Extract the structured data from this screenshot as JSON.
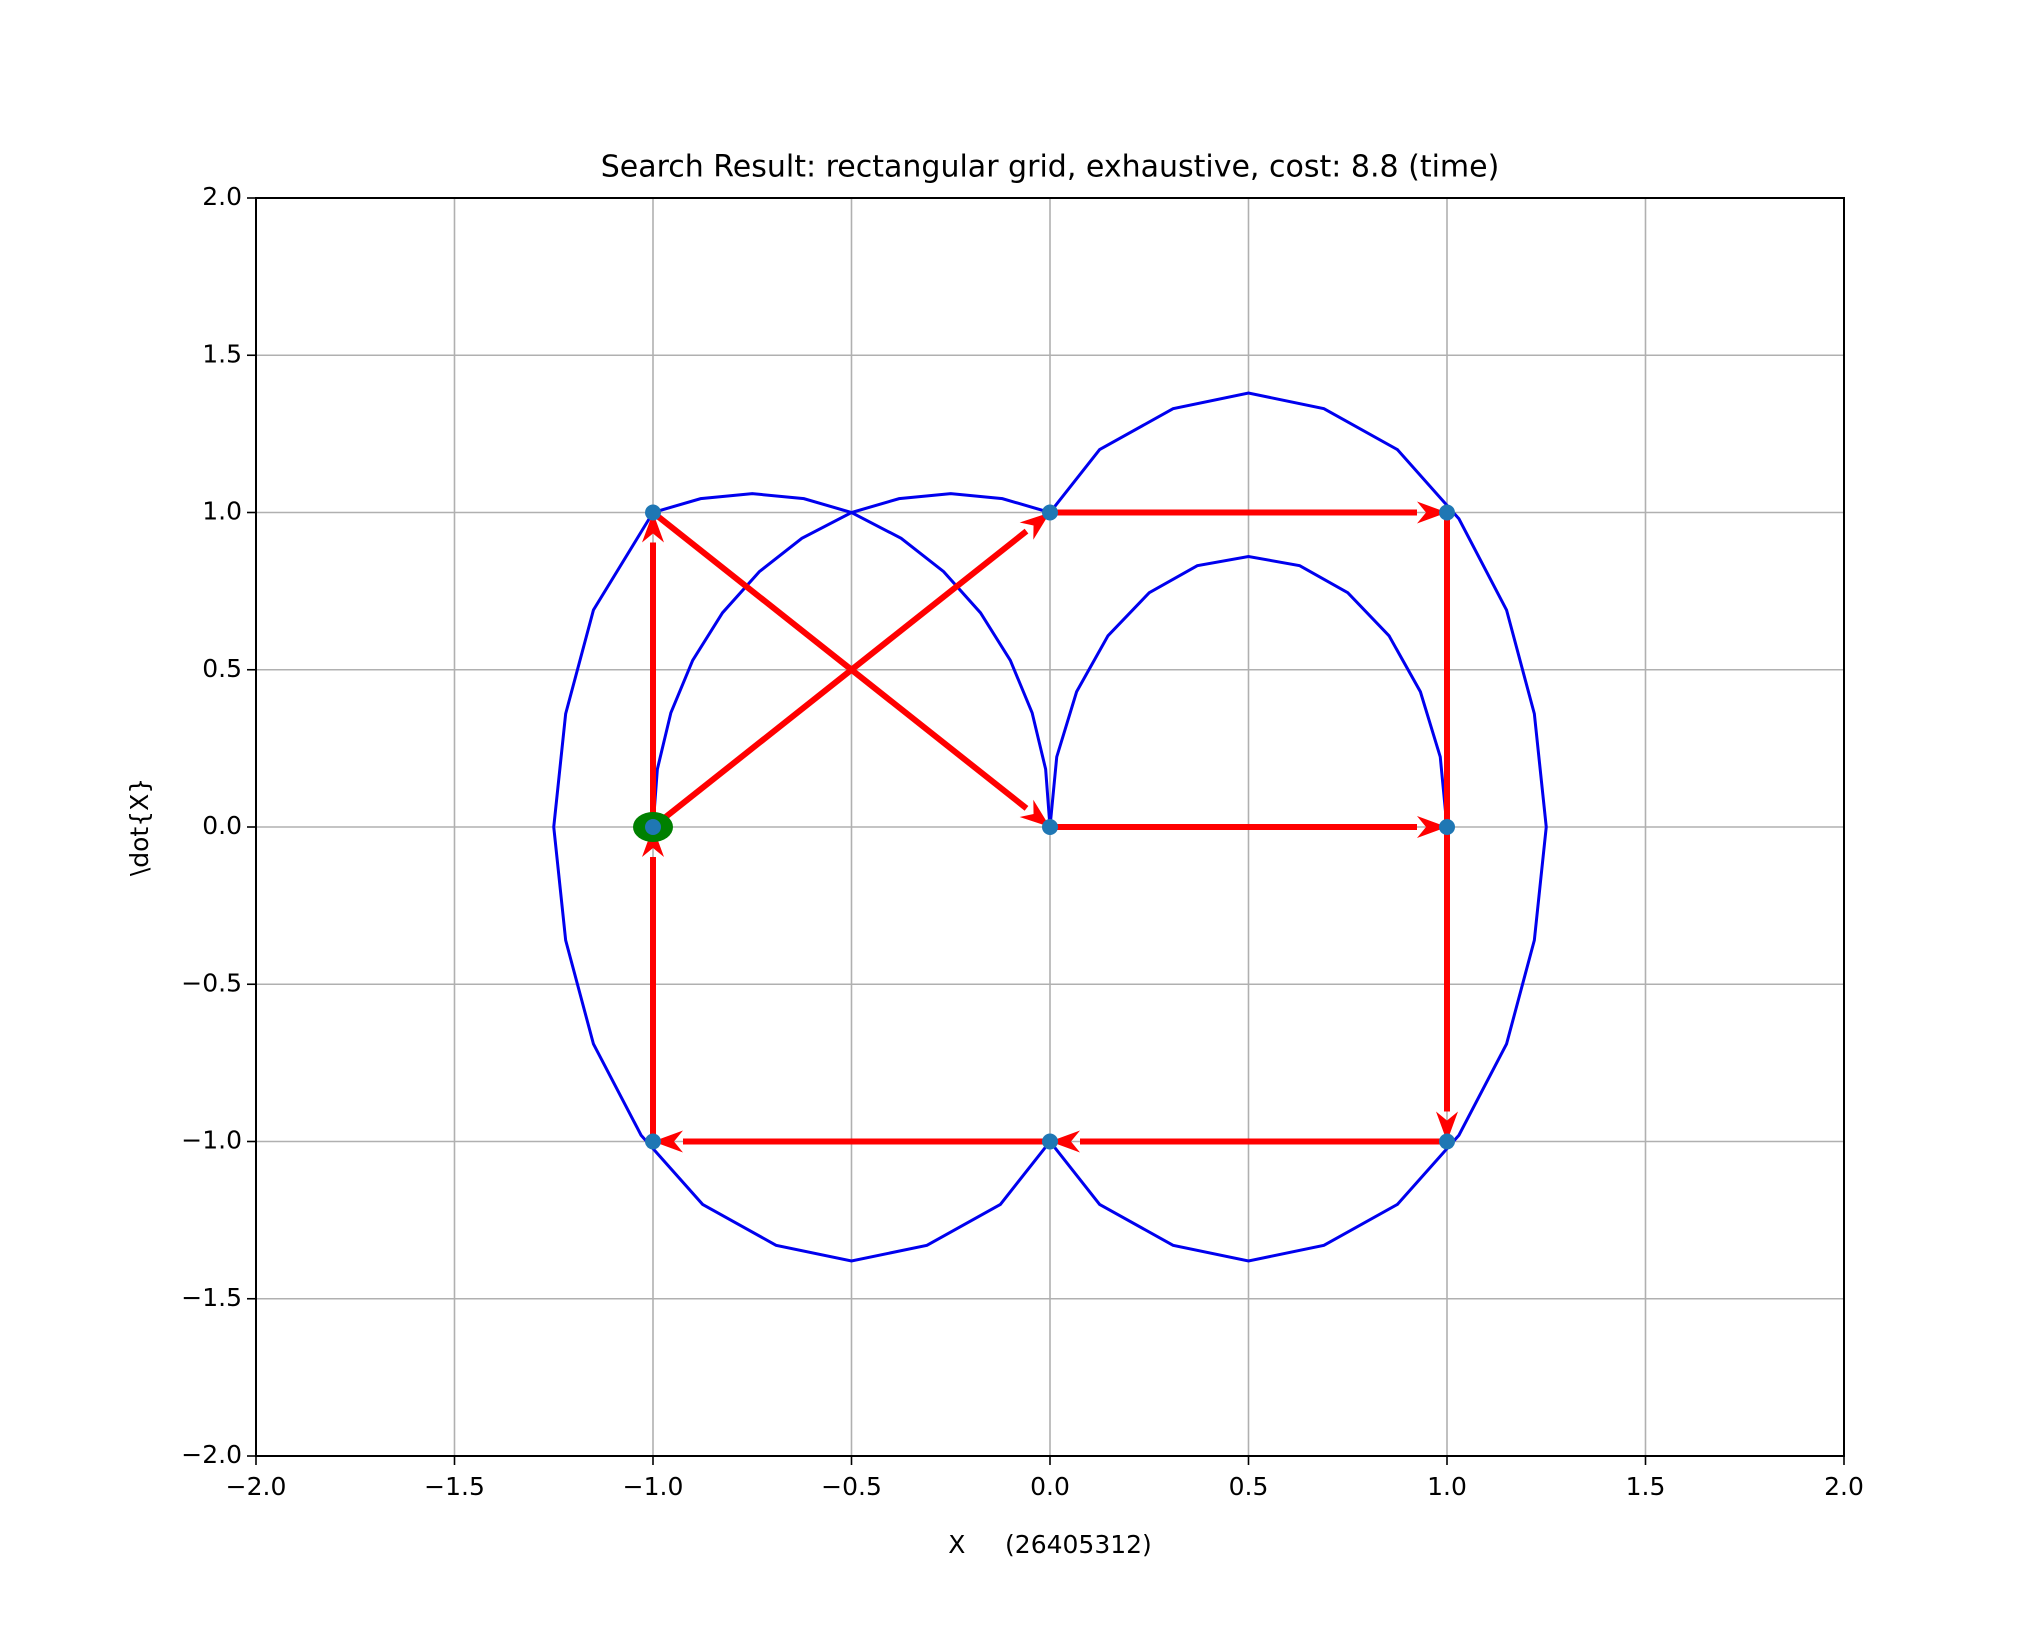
{
  "chart_data": {
    "type": "scatter",
    "title": "Search Result: rectangular grid, exhaustive, cost: 8.8 (time)",
    "x_label": "X     (26405312)",
    "y_label": "\\dot{X}",
    "xlim": [
      -2,
      2
    ],
    "ylim": [
      -2,
      2
    ],
    "xticks": [
      {
        "value": -2,
        "label": "−2.0"
      },
      {
        "value": -1.5,
        "label": "−1.5"
      },
      {
        "value": -1,
        "label": "−1.0"
      },
      {
        "value": -0.5,
        "label": "−0.5"
      },
      {
        "value": 0,
        "label": "0.0"
      },
      {
        "value": 0.5,
        "label": "0.5"
      },
      {
        "value": 1,
        "label": "1.0"
      },
      {
        "value": 1.5,
        "label": "1.5"
      },
      {
        "value": 2,
        "label": "2.0"
      }
    ],
    "yticks": [
      {
        "value": -2,
        "label": "−2.0"
      },
      {
        "value": -1.5,
        "label": "−1.5"
      },
      {
        "value": -1,
        "label": "−1.0"
      },
      {
        "value": -0.5,
        "label": "−0.5"
      },
      {
        "value": 0,
        "label": "0.0"
      },
      {
        "value": 0.5,
        "label": "0.5"
      },
      {
        "value": 1,
        "label": "1.0"
      },
      {
        "value": 1.5,
        "label": "1.5"
      },
      {
        "value": 2,
        "label": "2.0"
      }
    ],
    "grid": true,
    "curve_color": "#0000ee",
    "arrow_color": "#ff0000",
    "curves": [
      {
        "x": [
          -1,
          -1.15,
          -1.22,
          -1.25,
          -1.22,
          -1.15,
          -1.03,
          -0.875,
          -0.69,
          -0.5,
          -0.31,
          -0.125,
          0
        ],
        "y": [
          1,
          0.69,
          0.36,
          0,
          -0.36,
          -0.69,
          -0.98,
          -1.2,
          -1.33,
          -1.38,
          -1.33,
          -1.2,
          -1
        ]
      },
      {
        "x": [
          0,
          0.125,
          0.31,
          0.5,
          0.69,
          0.875,
          1.03,
          1.15,
          1.22,
          1.25,
          1.22,
          1.15,
          1.03,
          0.875,
          0.69,
          0.5,
          0.31,
          0.125,
          0
        ],
        "y": [
          -1,
          -1.2,
          -1.33,
          -1.38,
          -1.33,
          -1.2,
          -0.98,
          -0.69,
          -0.36,
          0,
          0.36,
          0.69,
          0.98,
          1.2,
          1.33,
          1.38,
          1.33,
          1.2,
          1
        ]
      },
      {
        "x": [
          -1,
          -0.88,
          -0.75,
          -0.62,
          -0.5,
          -0.375,
          -0.268,
          -0.175,
          -0.1,
          -0.045,
          -0.011,
          0
        ],
        "y": [
          1,
          1.044,
          1.06,
          1.044,
          1,
          0.918,
          0.812,
          0.681,
          0.53,
          0.363,
          0.184,
          0
        ]
      },
      {
        "x": [
          -1,
          -0.989,
          -0.955,
          -0.9,
          -0.825,
          -0.732,
          -0.625,
          -0.5,
          -0.38,
          -0.25,
          -0.12,
          0
        ],
        "y": [
          0,
          0.184,
          0.363,
          0.53,
          0.681,
          0.812,
          0.918,
          1,
          1.044,
          1.06,
          1.044,
          1
        ]
      },
      {
        "x": [
          0,
          0.017,
          0.067,
          0.146,
          0.25,
          0.371,
          0.5,
          0.629,
          0.75,
          0.854,
          0.933,
          0.983,
          1
        ],
        "y": [
          0,
          0.223,
          0.43,
          0.608,
          0.745,
          0.831,
          0.86,
          0.831,
          0.745,
          0.608,
          0.43,
          0.223,
          0
        ]
      }
    ],
    "arrows": [
      {
        "x": [
          -1,
          -1
        ],
        "y": [
          0,
          1
        ]
      },
      {
        "x": [
          -1,
          0
        ],
        "y": [
          0,
          1
        ]
      },
      {
        "x": [
          -1,
          0
        ],
        "y": [
          1,
          0
        ]
      },
      {
        "x": [
          0,
          1
        ],
        "y": [
          1,
          1
        ]
      },
      {
        "x": [
          0,
          1
        ],
        "y": [
          0,
          0
        ]
      },
      {
        "x": [
          1,
          1
        ],
        "y": [
          1,
          -1
        ]
      },
      {
        "x": [
          1,
          0
        ],
        "y": [
          -1,
          -1
        ]
      },
      {
        "x": [
          0,
          -1
        ],
        "y": [
          -1,
          -1
        ]
      },
      {
        "x": [
          -1,
          -1
        ],
        "y": [
          -1,
          0
        ]
      }
    ],
    "points": {
      "color": "#1f77b4",
      "x": [
        -1,
        0,
        1,
        -1,
        0,
        1,
        -1,
        0,
        1
      ],
      "y": [
        1,
        1,
        1,
        0,
        0,
        0,
        -1,
        -1,
        -1
      ]
    },
    "start": {
      "x": -1,
      "y": 0,
      "color": "#008000"
    }
  }
}
